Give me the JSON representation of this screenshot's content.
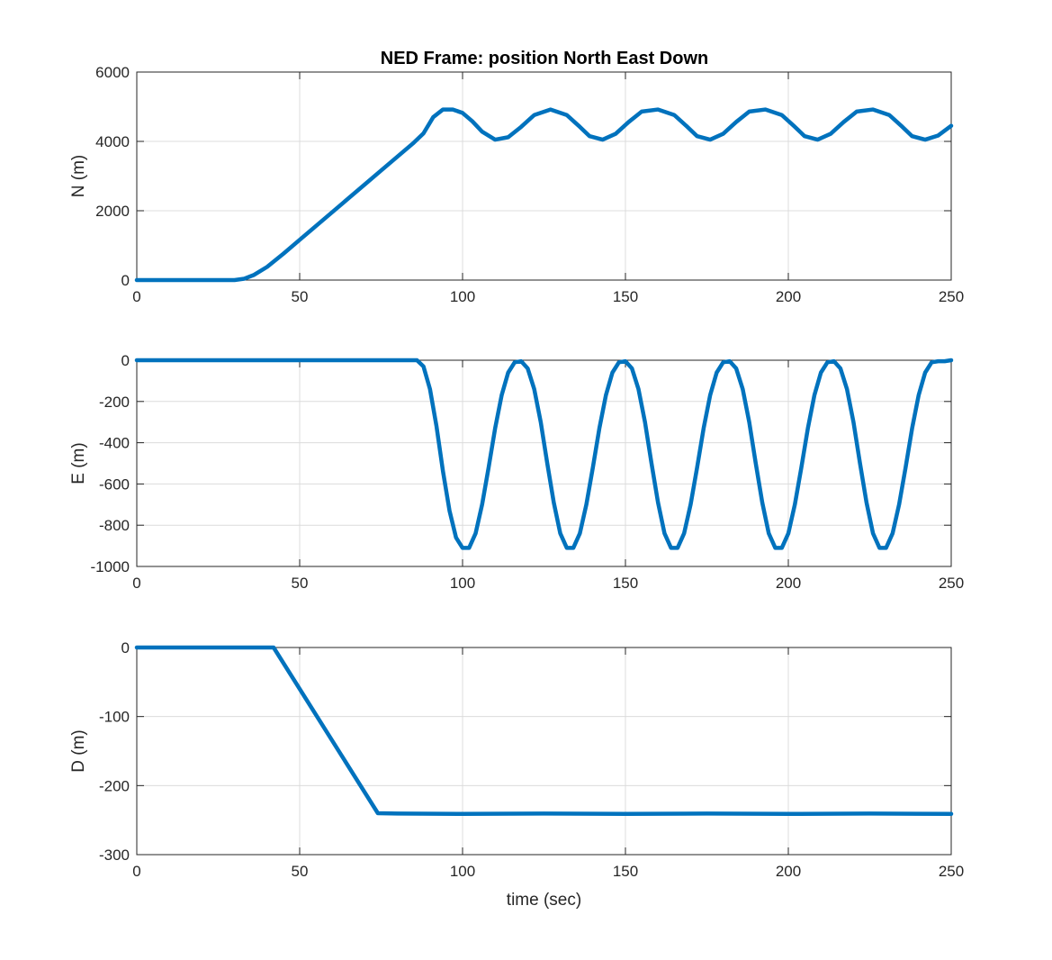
{
  "figure": {
    "title": "NED Frame: position North East Down",
    "line_color": "#0072bd"
  },
  "chart_data": [
    {
      "type": "line",
      "title": "NED Frame: position North East Down",
      "xlabel": "",
      "ylabel": "N (m)",
      "xlim": [
        0,
        250
      ],
      "ylim": [
        0,
        6000
      ],
      "xticks": [
        0,
        50,
        100,
        150,
        200,
        250
      ],
      "yticks": [
        0,
        2000,
        4000,
        6000
      ],
      "grid": true,
      "series": [
        {
          "color": "#0072bd",
          "x": [
            0,
            30,
            33,
            36,
            40,
            45,
            50,
            55,
            60,
            65,
            70,
            75,
            80,
            85,
            88,
            91,
            94,
            97,
            100,
            103,
            106,
            110,
            114,
            118,
            122,
            127,
            132,
            136,
            139,
            143,
            147,
            151,
            155,
            160,
            165,
            169,
            172,
            176,
            180,
            184,
            188,
            193,
            198,
            202,
            205,
            209,
            213,
            217,
            221,
            226,
            231,
            235,
            238,
            242,
            246,
            250
          ],
          "y": [
            0,
            0,
            40,
            150,
            380,
            760,
            1160,
            1560,
            1960,
            2360,
            2760,
            3160,
            3560,
            3960,
            4230,
            4700,
            4920,
            4920,
            4820,
            4580,
            4280,
            4050,
            4120,
            4420,
            4760,
            4920,
            4760,
            4420,
            4150,
            4050,
            4220,
            4560,
            4860,
            4920,
            4760,
            4420,
            4150,
            4050,
            4220,
            4560,
            4860,
            4920,
            4760,
            4420,
            4150,
            4050,
            4220,
            4560,
            4860,
            4920,
            4760,
            4420,
            4150,
            4050,
            4170,
            4450
          ]
        }
      ]
    },
    {
      "type": "line",
      "xlabel": "",
      "ylabel": "E (m)",
      "xlim": [
        0,
        250
      ],
      "ylim": [
        -1000,
        0
      ],
      "xticks": [
        0,
        50,
        100,
        150,
        200,
        250
      ],
      "yticks": [
        -1000,
        -800,
        -600,
        -400,
        -200,
        0
      ],
      "grid": true,
      "series": [
        {
          "color": "#0072bd",
          "x": [
            0,
            86,
            88,
            90,
            92,
            94,
            96,
            98,
            100,
            102,
            104,
            106,
            108,
            110,
            112,
            114,
            116,
            118,
            120,
            122,
            124,
            126,
            128,
            130,
            132,
            134,
            136,
            138,
            140,
            142,
            144,
            146,
            148,
            150,
            152,
            154,
            156,
            158,
            160,
            162,
            164,
            166,
            168,
            170,
            172,
            174,
            176,
            178,
            180,
            182,
            184,
            186,
            188,
            190,
            192,
            194,
            196,
            198,
            200,
            202,
            204,
            206,
            208,
            210,
            212,
            214,
            216,
            218,
            220,
            222,
            224,
            226,
            228,
            230,
            232,
            234,
            236,
            238,
            240,
            242,
            244,
            246,
            248,
            250
          ],
          "y": [
            0,
            0,
            -30,
            -140,
            -320,
            -540,
            -730,
            -860,
            -910,
            -910,
            -840,
            -700,
            -520,
            -330,
            -170,
            -60,
            -10,
            -5,
            -40,
            -140,
            -300,
            -500,
            -690,
            -840,
            -910,
            -910,
            -840,
            -700,
            -520,
            -330,
            -170,
            -60,
            -10,
            -5,
            -40,
            -140,
            -300,
            -500,
            -690,
            -840,
            -910,
            -910,
            -840,
            -700,
            -520,
            -330,
            -170,
            -60,
            -10,
            -5,
            -40,
            -140,
            -300,
            -500,
            -690,
            -840,
            -910,
            -910,
            -840,
            -700,
            -520,
            -330,
            -170,
            -60,
            -10,
            -5,
            -40,
            -140,
            -300,
            -500,
            -690,
            -840,
            -910,
            -910,
            -840,
            -700,
            -520,
            -330,
            -170,
            -60,
            -10,
            -5,
            -5,
            0
          ]
        }
      ]
    },
    {
      "type": "line",
      "xlabel": "time (sec)",
      "ylabel": "D (m)",
      "xlim": [
        0,
        250
      ],
      "ylim": [
        -300,
        0
      ],
      "xticks": [
        0,
        50,
        100,
        150,
        200,
        250
      ],
      "yticks": [
        -300,
        -200,
        -100,
        0
      ],
      "grid": true,
      "series": [
        {
          "color": "#0072bd",
          "x": [
            0,
            42,
            74,
            80,
            100,
            125,
            150,
            175,
            200,
            225,
            250
          ],
          "y": [
            0,
            0,
            -240,
            -240.5,
            -241,
            -240.5,
            -241,
            -240.5,
            -241,
            -240.5,
            -241
          ]
        }
      ]
    }
  ]
}
